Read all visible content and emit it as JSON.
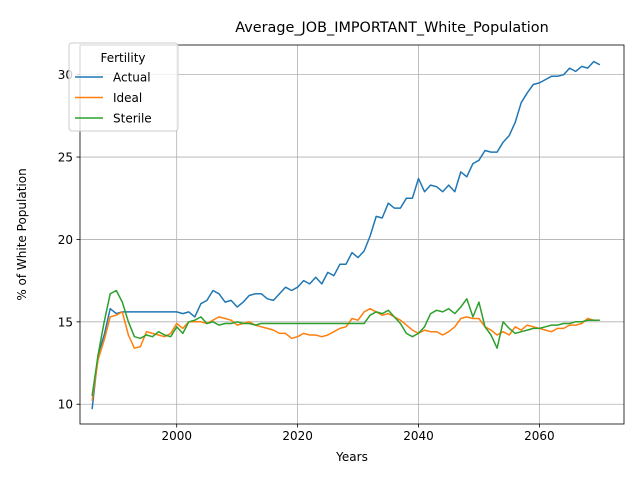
{
  "chart_data": {
    "type": "line",
    "title": "Average_JOB_IMPORTANT_White_Population",
    "xlabel": "Years",
    "ylabel": "% of White Population",
    "xlim": [
      1984,
      2074
    ],
    "ylim": [
      8.8,
      31.8
    ],
    "xticks": [
      2000,
      2020,
      2040,
      2060
    ],
    "yticks": [
      10,
      15,
      20,
      25,
      30
    ],
    "grid": true,
    "legend": {
      "title": "Fertility",
      "position": "top-left"
    },
    "series": [
      {
        "name": "Actual",
        "color": "#1f77b4",
        "x": [
          1986,
          1987,
          1988,
          1989,
          1990,
          1991,
          1992,
          1993,
          1994,
          1995,
          1996,
          1997,
          1998,
          1999,
          2000,
          2001,
          2002,
          2003,
          2004,
          2005,
          2006,
          2007,
          2008,
          2009,
          2010,
          2011,
          2012,
          2013,
          2014,
          2015,
          2016,
          2017,
          2018,
          2019,
          2020,
          2021,
          2022,
          2023,
          2024,
          2025,
          2026,
          2027,
          2028,
          2029,
          2030,
          2031,
          2032,
          2033,
          2034,
          2035,
          2036,
          2037,
          2038,
          2039,
          2040,
          2041,
          2042,
          2043,
          2044,
          2045,
          2046,
          2047,
          2048,
          2049,
          2050,
          2051,
          2052,
          2053,
          2054,
          2055,
          2056,
          2057,
          2058,
          2059,
          2060,
          2061,
          2062,
          2063,
          2064,
          2065,
          2066,
          2067,
          2068,
          2069,
          2070
        ],
        "values": [
          9.7,
          13.0,
          14.2,
          15.8,
          15.5,
          15.6,
          15.6,
          15.6,
          15.6,
          15.6,
          15.6,
          15.6,
          15.6,
          15.6,
          15.6,
          15.5,
          15.6,
          15.3,
          16.1,
          16.3,
          16.9,
          16.7,
          16.2,
          16.3,
          15.9,
          16.2,
          16.6,
          16.7,
          16.7,
          16.4,
          16.3,
          16.7,
          17.1,
          16.9,
          17.1,
          17.5,
          17.3,
          17.7,
          17.3,
          18.0,
          17.8,
          18.5,
          18.5,
          19.2,
          18.9,
          19.3,
          20.2,
          21.4,
          21.3,
          22.2,
          21.9,
          21.9,
          22.5,
          22.5,
          23.7,
          22.9,
          23.3,
          23.2,
          22.9,
          23.3,
          22.9,
          24.1,
          23.8,
          24.6,
          24.8,
          25.4,
          25.3,
          25.3,
          25.9,
          26.3,
          27.1,
          28.3,
          28.9,
          29.4,
          29.5,
          29.7,
          29.9,
          29.9,
          30.0,
          30.4,
          30.2,
          30.5,
          30.4,
          30.8,
          30.6
        ]
      },
      {
        "name": "Ideal",
        "color": "#ff7f0e",
        "x": [
          1986,
          1987,
          1988,
          1989,
          1990,
          1991,
          1992,
          1993,
          1994,
          1995,
          1996,
          1997,
          1998,
          1999,
          2000,
          2001,
          2002,
          2003,
          2004,
          2005,
          2006,
          2007,
          2008,
          2009,
          2010,
          2011,
          2012,
          2013,
          2014,
          2015,
          2016,
          2017,
          2018,
          2019,
          2020,
          2021,
          2022,
          2023,
          2024,
          2025,
          2026,
          2027,
          2028,
          2029,
          2030,
          2031,
          2032,
          2033,
          2034,
          2035,
          2036,
          2037,
          2038,
          2039,
          2040,
          2041,
          2042,
          2043,
          2044,
          2045,
          2046,
          2047,
          2048,
          2049,
          2050,
          2051,
          2052,
          2053,
          2054,
          2055,
          2056,
          2057,
          2058,
          2059,
          2060,
          2061,
          2062,
          2063,
          2064,
          2065,
          2066,
          2067,
          2068,
          2069,
          2070
        ],
        "values": [
          10.2,
          12.7,
          13.9,
          15.3,
          15.4,
          15.6,
          14.2,
          13.4,
          13.5,
          14.4,
          14.3,
          14.2,
          14.1,
          14.3,
          14.9,
          14.6,
          15.0,
          15.0,
          15.0,
          14.9,
          15.1,
          15.3,
          15.2,
          15.1,
          14.8,
          14.9,
          15.0,
          14.8,
          14.7,
          14.6,
          14.5,
          14.3,
          14.3,
          14.0,
          14.1,
          14.3,
          14.2,
          14.2,
          14.1,
          14.2,
          14.4,
          14.6,
          14.7,
          15.2,
          15.1,
          15.6,
          15.8,
          15.6,
          15.4,
          15.5,
          15.3,
          15.1,
          14.8,
          14.5,
          14.3,
          14.5,
          14.4,
          14.4,
          14.2,
          14.4,
          14.7,
          15.2,
          15.3,
          15.2,
          15.2,
          14.7,
          14.5,
          14.2,
          14.4,
          14.2,
          14.7,
          14.5,
          14.8,
          14.7,
          14.6,
          14.5,
          14.4,
          14.6,
          14.6,
          14.8,
          14.8,
          14.9,
          15.2,
          15.1,
          15.1
        ]
      },
      {
        "name": "Sterile",
        "color": "#2ca02c",
        "x": [
          1986,
          1987,
          1988,
          1989,
          1990,
          1991,
          1992,
          1993,
          1994,
          1995,
          1996,
          1997,
          1998,
          1999,
          2000,
          2001,
          2002,
          2003,
          2004,
          2005,
          2006,
          2007,
          2008,
          2009,
          2010,
          2011,
          2012,
          2013,
          2014,
          2015,
          2016,
          2017,
          2018,
          2019,
          2020,
          2021,
          2022,
          2023,
          2024,
          2025,
          2026,
          2027,
          2028,
          2029,
          2030,
          2031,
          2032,
          2033,
          2034,
          2035,
          2036,
          2037,
          2038,
          2039,
          2040,
          2041,
          2042,
          2043,
          2044,
          2045,
          2046,
          2047,
          2048,
          2049,
          2050,
          2051,
          2052,
          2053,
          2054,
          2055,
          2056,
          2057,
          2058,
          2059,
          2060,
          2061,
          2062,
          2063,
          2064,
          2065,
          2066,
          2067,
          2068,
          2069,
          2070
        ],
        "values": [
          10.5,
          13.0,
          15.0,
          16.7,
          16.9,
          16.2,
          15.0,
          14.1,
          14.0,
          14.2,
          14.1,
          14.4,
          14.2,
          14.1,
          14.7,
          14.3,
          15.0,
          15.1,
          15.3,
          14.9,
          15.0,
          14.8,
          14.9,
          14.9,
          15.0,
          14.9,
          14.9,
          14.8,
          14.9,
          14.9,
          14.9,
          14.9,
          14.9,
          14.9,
          14.9,
          14.9,
          14.9,
          14.9,
          14.9,
          14.9,
          14.9,
          14.9,
          14.9,
          14.9,
          14.9,
          14.9,
          15.4,
          15.6,
          15.5,
          15.7,
          15.3,
          14.9,
          14.3,
          14.1,
          14.3,
          14.7,
          15.5,
          15.7,
          15.6,
          15.8,
          15.5,
          15.9,
          16.4,
          15.3,
          16.2,
          14.7,
          14.2,
          13.4,
          15.0,
          14.6,
          14.3,
          14.4,
          14.5,
          14.6,
          14.6,
          14.7,
          14.8,
          14.8,
          14.9,
          14.9,
          15.0,
          15.0,
          15.1,
          15.1,
          15.1
        ]
      }
    ]
  }
}
